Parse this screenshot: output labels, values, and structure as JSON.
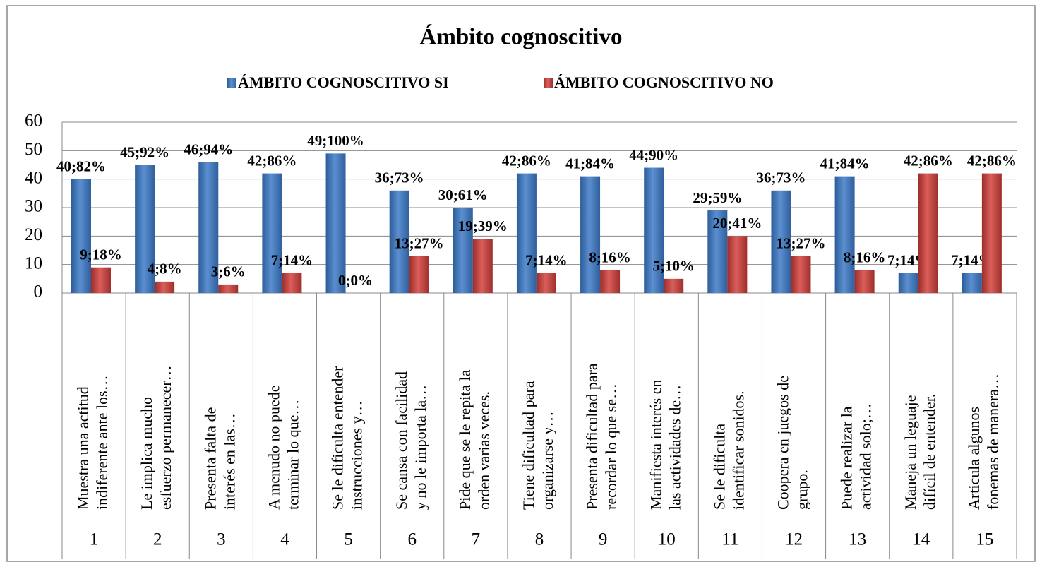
{
  "chart_data": {
    "type": "bar",
    "title": "Ámbito cognoscitivo",
    "categories": [
      1,
      2,
      3,
      4,
      5,
      6,
      7,
      8,
      9,
      10,
      11,
      12,
      13,
      14,
      15
    ],
    "category_labels": [
      [
        "Muestra una actitud",
        "indiferente ante los…"
      ],
      [
        "Le implica mucho",
        "esfuerzo permanecer…"
      ],
      [
        "Presenta falta de",
        "interés en las…"
      ],
      [
        "A menudo no puede",
        "terminar lo que…"
      ],
      [
        "Se le dificulta entender",
        "instrucciones y…"
      ],
      [
        "Se cansa con facilidad",
        "y no le importa la…"
      ],
      [
        "Pide que se le repita la",
        "orden varias veces."
      ],
      [
        "Tiene dificultad para",
        "organizarse y…"
      ],
      [
        "Presenta dificultad para",
        "recordar lo que se…"
      ],
      [
        "Manifiesta interés en",
        "las actividades de…"
      ],
      [
        "Se le dificulta",
        "identificar sonidos."
      ],
      [
        "Coopera en juegos de",
        "grupo."
      ],
      [
        "Puede realizar la",
        "actividad solo;…"
      ],
      [
        "Maneja un leguaje",
        "difícil de entender."
      ],
      [
        "Articula algunos",
        "fonemas de manera…"
      ]
    ],
    "series": [
      {
        "name": "ÁMBITO COGNOSCITIVO SI",
        "color": "#4a7ebb",
        "values": [
          40,
          45,
          46,
          42,
          49,
          36,
          30,
          42,
          41,
          44,
          29,
          36,
          41,
          7,
          7
        ],
        "value_labels": [
          "40;82%",
          "45;92%",
          "46;94%",
          "42;86%",
          "49;100%",
          "36;73%",
          "30;61%",
          "42;86%",
          "41;84%",
          "44;90%",
          "29;59%",
          "36;73%",
          "41;84%",
          "7;14%",
          "7;14%"
        ]
      },
      {
        "name": "ÁMBITO COGNOSCITIVO NO",
        "color": "#c0504d",
        "values": [
          9,
          4,
          3,
          7,
          0,
          13,
          19,
          7,
          8,
          5,
          20,
          13,
          8,
          42,
          42
        ],
        "value_labels": [
          "9;18%",
          "4;8%",
          "3;6%",
          "7;14%",
          "0;0%",
          "13;27%",
          "19;39%",
          "7;14%",
          "8;16%",
          "5;10%",
          "20;41%",
          "13;27%",
          "8;16%",
          "42;86%",
          "42;86%"
        ]
      }
    ],
    "ylim": [
      0,
      60
    ],
    "yticks": [
      0,
      10,
      20,
      30,
      40,
      50,
      60
    ],
    "grid": true,
    "legend": "top"
  }
}
